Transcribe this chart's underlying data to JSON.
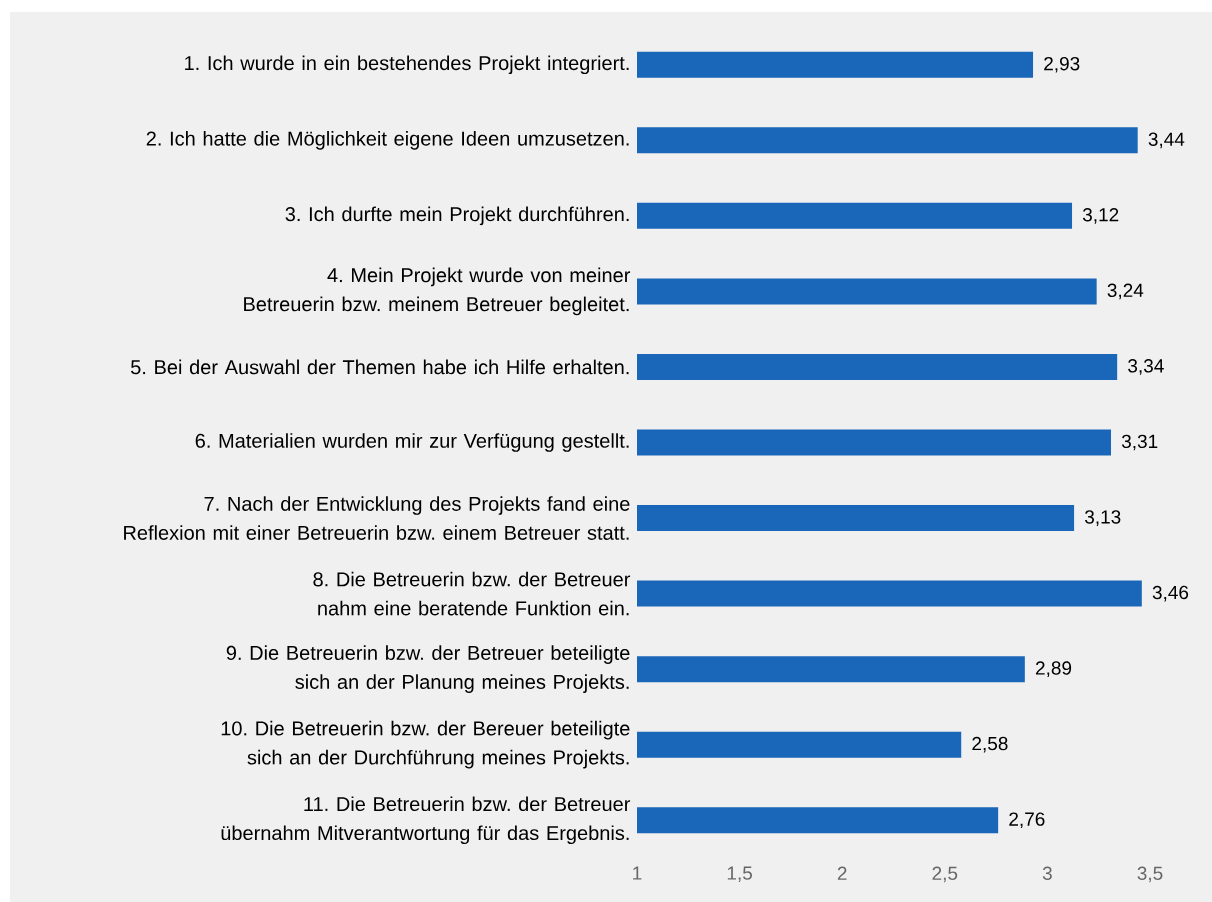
{
  "chart_data": {
    "type": "bar",
    "orientation": "horizontal",
    "categories": [
      "1. Ich wurde in ein bestehendes Projekt integriert.",
      "2. Ich hatte die Möglichkeit eigene Ideen umzusetzen.",
      "3. Ich durfte mein Projekt durchführen.",
      "4. Mein Projekt wurde von meiner Betreuerin bzw. meinem Betreuer begleitet.",
      "5. Bei der Auswahl der Themen habe ich Hilfe erhalten.",
      "6. Materialien wurden mir zur Verfügung gestellt.",
      "7. Nach der Entwicklung des Projekts fand eine Reflexion mit einer Betreuerin bzw. einem Betreuer statt.",
      "8. Die Betreuerin bzw. der Betreuer nahm eine beratende Funktion ein.",
      "9. Die Betreuerin bzw. der Betreuer beteiligte sich an der Planung meines Projekts.",
      "10. Die Betreuerin bzw. der Bereuer beteiligte sich an der Durchführung meines Projekts.",
      "11. Die Betreuerin bzw. der Betreuer übernahm Mitverantwortung für das Ergebnis."
    ],
    "values": [
      2.93,
      3.44,
      3.12,
      3.24,
      3.34,
      3.31,
      3.13,
      3.46,
      2.89,
      2.58,
      2.76
    ],
    "value_labels": [
      "2,93",
      "3,44",
      "3,12",
      "3,24",
      "3,34",
      "3,31",
      "3,13",
      "3,46",
      "2,89",
      "2,58",
      "2,76"
    ],
    "color": "#1a66b8",
    "xlim": [
      1,
      3.5
    ],
    "xticks": [
      1,
      {
        "value": 1.5,
        "label": "1,5"
      },
      2,
      {
        "value": 2.5,
        "label": "2,5"
      },
      3,
      {
        "value": 3.5,
        "label": "3,5"
      }
    ],
    "grid": false
  }
}
